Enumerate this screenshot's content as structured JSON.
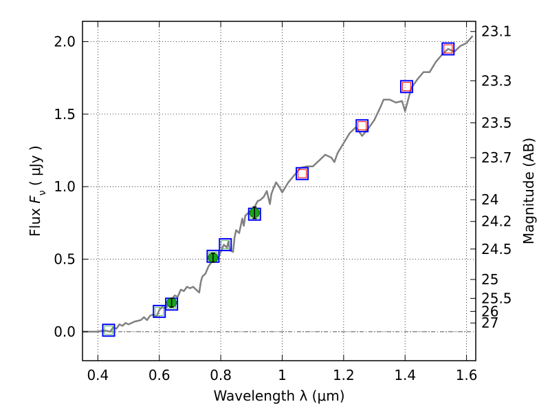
{
  "chart_data": {
    "type": "line",
    "xlabel": "Wavelength  λ (μm)",
    "ylabel": "Flux  F_ν  ( μJy )",
    "ylabel_parts": {
      "prefix": "Flux  ",
      "var": "F",
      "sub": "ν",
      "suffix": "  ( μJy )"
    },
    "y2label": "Magnitude (AB)",
    "xlim": [
      0.35,
      1.63
    ],
    "ylim": [
      -0.2,
      2.14
    ],
    "grid": true,
    "x_ticks": [
      0.4,
      0.6,
      0.8,
      1.0,
      1.2,
      1.4,
      1.6
    ],
    "x_tick_labels": [
      "0.4",
      "0.6",
      "0.8",
      "1",
      "1.2",
      "1.4",
      "1.6"
    ],
    "y_ticks": [
      0.0,
      0.5,
      1.0,
      1.5,
      2.0
    ],
    "y_tick_labels": [
      "0.0",
      "0.5",
      "1.0",
      "1.5",
      "2.0"
    ],
    "y2_ticks": [
      {
        "label": "23.1",
        "flux": 2.07
      },
      {
        "label": "23.3",
        "flux": 1.73
      },
      {
        "label": "23.5",
        "flux": 1.44
      },
      {
        "label": "23.7",
        "flux": 1.2
      },
      {
        "label": "24",
        "flux": 0.91
      },
      {
        "label": "24.2",
        "flux": 0.76
      },
      {
        "label": "24.5",
        "flux": 0.57
      },
      {
        "label": "25",
        "flux": 0.36
      },
      {
        "label": "25.5",
        "flux": 0.23
      },
      {
        "label": "26",
        "flux": 0.14
      },
      {
        "label": "27",
        "flux": 0.06
      }
    ],
    "colors": {
      "model": "#808080",
      "model_points": "#5cb85c",
      "blue_box": "#0000ff",
      "red_box": "#ff0000",
      "observed": "#1aa31a",
      "zero_line": "#555555"
    },
    "model_spectrum": {
      "x": [
        0.35,
        0.38,
        0.4,
        0.42,
        0.44,
        0.45,
        0.46,
        0.47,
        0.48,
        0.49,
        0.5,
        0.52,
        0.54,
        0.55,
        0.56,
        0.57,
        0.58,
        0.59,
        0.6,
        0.61,
        0.62,
        0.63,
        0.64,
        0.65,
        0.66,
        0.67,
        0.68,
        0.69,
        0.7,
        0.71,
        0.72,
        0.73,
        0.735,
        0.74,
        0.75,
        0.76,
        0.77,
        0.78,
        0.79,
        0.8,
        0.81,
        0.82,
        0.825,
        0.83,
        0.84,
        0.845,
        0.85,
        0.86,
        0.87,
        0.875,
        0.88,
        0.89,
        0.9,
        0.91,
        0.92,
        0.93,
        0.94,
        0.95,
        0.96,
        0.965,
        0.97,
        0.98,
        0.99,
        1.0,
        1.02,
        1.04,
        1.06,
        1.08,
        1.1,
        1.12,
        1.14,
        1.16,
        1.17,
        1.18,
        1.2,
        1.22,
        1.24,
        1.26,
        1.28,
        1.3,
        1.32,
        1.33,
        1.35,
        1.37,
        1.39,
        1.4,
        1.42,
        1.44,
        1.46,
        1.48,
        1.5,
        1.52,
        1.54,
        1.56,
        1.58,
        1.6,
        1.62
      ],
      "y": [
        0.0,
        0.0,
        0.0,
        0.01,
        0.0,
        0.03,
        0.02,
        0.05,
        0.04,
        0.06,
        0.05,
        0.07,
        0.08,
        0.1,
        0.08,
        0.11,
        0.12,
        0.1,
        0.15,
        0.17,
        0.16,
        0.2,
        0.22,
        0.25,
        0.24,
        0.29,
        0.28,
        0.31,
        0.3,
        0.31,
        0.29,
        0.27,
        0.34,
        0.38,
        0.4,
        0.45,
        0.48,
        0.52,
        0.5,
        0.55,
        0.6,
        0.58,
        0.62,
        0.56,
        0.55,
        0.65,
        0.7,
        0.68,
        0.78,
        0.73,
        0.8,
        0.82,
        0.84,
        0.86,
        0.9,
        0.91,
        0.93,
        0.97,
        0.88,
        0.95,
        0.98,
        1.03,
        1.0,
        0.96,
        1.03,
        1.08,
        1.13,
        1.14,
        1.14,
        1.18,
        1.22,
        1.2,
        1.17,
        1.23,
        1.3,
        1.37,
        1.41,
        1.35,
        1.4,
        1.46,
        1.55,
        1.6,
        1.6,
        1.58,
        1.59,
        1.52,
        1.68,
        1.74,
        1.79,
        1.79,
        1.86,
        1.91,
        1.95,
        1.93,
        1.97,
        1.99,
        2.04
      ]
    },
    "photometry_boxes": [
      {
        "x": 0.435,
        "y": 0.01,
        "edge": "blue"
      },
      {
        "x": 0.6,
        "y": 0.14,
        "edge": "blue"
      },
      {
        "x": 0.64,
        "y": 0.19,
        "edge": "blue"
      },
      {
        "x": 0.775,
        "y": 0.52,
        "edge": "blue"
      },
      {
        "x": 0.815,
        "y": 0.6,
        "edge": "blue"
      },
      {
        "x": 0.91,
        "y": 0.81,
        "edge": "blue"
      },
      {
        "x": 1.065,
        "y": 1.09,
        "edge": "blue",
        "inner": "red"
      },
      {
        "x": 1.26,
        "y": 1.42,
        "edge": "blue",
        "inner": "red"
      },
      {
        "x": 1.405,
        "y": 1.69,
        "edge": "blue",
        "inner": "red"
      },
      {
        "x": 1.54,
        "y": 1.95,
        "edge": "blue",
        "inner": "red"
      }
    ],
    "observed_points": [
      {
        "x": 0.64,
        "y": 0.2,
        "err": 0.03
      },
      {
        "x": 0.775,
        "y": 0.51,
        "err": 0.03
      },
      {
        "x": 0.91,
        "y": 0.82,
        "err": 0.04
      }
    ]
  }
}
